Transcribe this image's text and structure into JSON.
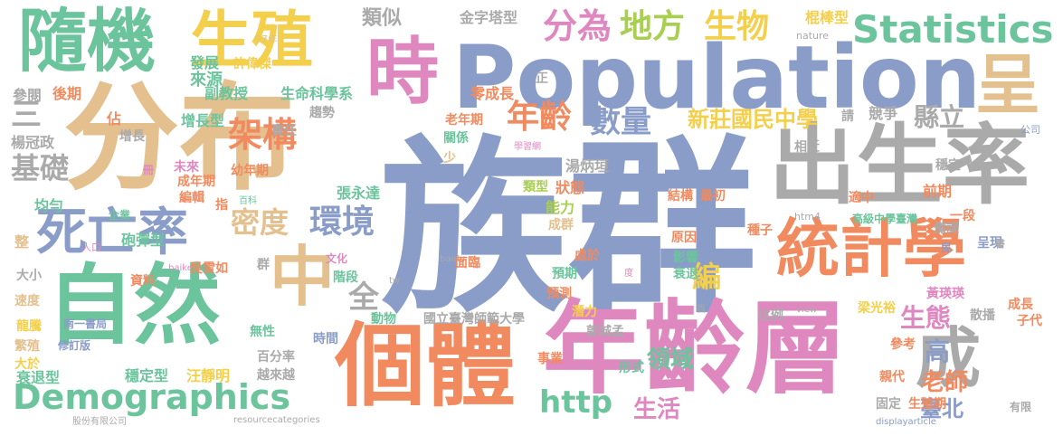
{
  "colors": {
    "blue": "#8a9cc8",
    "tan": "#e3c08e",
    "green": "#6cc49d",
    "orange": "#f18a5f",
    "pink": "#df88c0",
    "gray": "#aaaaaa",
    "yellow": "#f4cf4b",
    "lime": "#a8cf50"
  },
  "words": [
    {
      "text": "族群",
      "color": "blue"
    },
    {
      "text": "Population",
      "color": "blue"
    },
    {
      "text": "分布",
      "color": "tan"
    },
    {
      "text": "年齡層",
      "color": "pink"
    },
    {
      "text": "個體",
      "color": "orange"
    },
    {
      "text": "出生率",
      "color": "gray"
    },
    {
      "text": "自然",
      "color": "green"
    },
    {
      "text": "隨機",
      "color": "green"
    },
    {
      "text": "生殖",
      "color": "yellow"
    },
    {
      "text": "統計學",
      "color": "orange"
    },
    {
      "text": "中",
      "color": "tan"
    },
    {
      "text": "死亡率",
      "color": "blue"
    },
    {
      "text": "時",
      "color": "pink"
    },
    {
      "text": "成",
      "color": "gray"
    },
    {
      "text": "呈",
      "color": "tan"
    },
    {
      "text": "Demographics",
      "color": "green"
    },
    {
      "text": "Statistics",
      "color": "green"
    },
    {
      "text": "架構",
      "color": "orange"
    },
    {
      "text": "分為",
      "color": "pink"
    },
    {
      "text": "地方",
      "color": "lime"
    },
    {
      "text": "生物",
      "color": "yellow"
    },
    {
      "text": "年齡",
      "color": "orange"
    },
    {
      "text": "數量",
      "color": "blue"
    },
    {
      "text": "環境",
      "color": "blue"
    },
    {
      "text": "密度",
      "color": "tan"
    },
    {
      "text": "基礎",
      "color": "gray"
    },
    {
      "text": "三",
      "color": "gray"
    },
    {
      "text": "新莊國民中學",
      "color": "yellow"
    },
    {
      "text": "縣立",
      "color": "gray"
    },
    {
      "text": "http",
      "color": "green"
    },
    {
      "text": "生態",
      "color": "pink"
    },
    {
      "text": "編",
      "color": "yellow"
    },
    {
      "text": "高",
      "color": "blue"
    },
    {
      "text": "老師",
      "color": "orange"
    },
    {
      "text": "臺北",
      "color": "blue"
    },
    {
      "text": "全",
      "color": "gray"
    },
    {
      "text": "領域",
      "color": "green"
    },
    {
      "text": "生活",
      "color": "pink"
    },
    {
      "text": "類似",
      "color": "gray"
    },
    {
      "text": "金字塔型",
      "color": "gray"
    },
    {
      "text": "棍棒型",
      "color": "yellow"
    },
    {
      "text": "nature",
      "color": "gray"
    },
    {
      "text": "97年",
      "color": "tan"
    },
    {
      "text": "發展",
      "color": "green"
    },
    {
      "text": "許偉傑",
      "color": "yellow"
    },
    {
      "text": "參閱",
      "color": "gray"
    },
    {
      "text": "後期",
      "color": "orange"
    },
    {
      "text": "來源",
      "color": "green"
    },
    {
      "text": "副教授",
      "color": "green"
    },
    {
      "text": "生命科學系",
      "color": "green"
    },
    {
      "text": "零成長",
      "color": "orange"
    },
    {
      "text": "正",
      "color": "gray"
    },
    {
      "text": "請",
      "color": "gray"
    },
    {
      "text": "競爭",
      "color": "gray"
    },
    {
      "text": "佔",
      "color": "orange"
    },
    {
      "text": "增長型",
      "color": "green"
    },
    {
      "text": "趨勢",
      "color": "gray"
    },
    {
      "text": "老年期",
      "color": "orange"
    },
    {
      "text": "關係",
      "color": "green"
    },
    {
      "text": "學習網",
      "color": "pink"
    },
    {
      "text": "公司",
      "color": "blue"
    },
    {
      "text": "楊冠政",
      "color": "gray"
    },
    {
      "text": "增長",
      "color": "gray"
    },
    {
      "text": "責任",
      "color": "gray"
    },
    {
      "text": "少",
      "color": "tan"
    },
    {
      "text": "湯炳垣",
      "color": "gray"
    },
    {
      "text": "相近",
      "color": "gray"
    },
    {
      "text": "冊",
      "color": "pink"
    },
    {
      "text": "未來",
      "color": "pink"
    },
    {
      "text": "成年期",
      "color": "orange"
    },
    {
      "text": "幼年期",
      "color": "orange"
    },
    {
      "text": "狀態",
      "color": "orange"
    },
    {
      "text": "穩定",
      "color": "gray"
    },
    {
      "text": "均勻",
      "color": "green"
    },
    {
      "text": "編輯",
      "color": "orange"
    },
    {
      "text": "百科",
      "color": "green"
    },
    {
      "text": "張永達",
      "color": "green"
    },
    {
      "text": "類型",
      "color": "lime"
    },
    {
      "text": "結構",
      "color": "orange"
    },
    {
      "text": "最初",
      "color": "orange"
    },
    {
      "text": "前期",
      "color": "orange"
    },
    {
      "text": "適中",
      "color": "orange"
    },
    {
      "text": "企業",
      "color": "green"
    },
    {
      "text": "指",
      "color": "orange"
    },
    {
      "text": "能力",
      "color": "lime"
    },
    {
      "text": "htm4",
      "color": "gray"
    },
    {
      "text": "高級中學臺灣",
      "color": "green"
    },
    {
      "text": "一段",
      "color": "orange"
    },
    {
      "text": "備課",
      "color": "gray"
    },
    {
      "text": "整",
      "color": "tan"
    },
    {
      "text": "人口",
      "color": "pink"
    },
    {
      "text": "砲彈型",
      "color": "green"
    },
    {
      "text": "成群",
      "color": "tan"
    },
    {
      "text": "處於",
      "color": "orange"
    },
    {
      "text": "原因",
      "color": "orange"
    },
    {
      "text": "種子",
      "color": "orange"
    },
    {
      "text": "呈現",
      "color": "blue"
    },
    {
      "text": "民",
      "color": "blue"
    },
    {
      "text": "書",
      "color": "gray"
    },
    {
      "text": "大小",
      "color": "gray"
    },
    {
      "text": "群",
      "color": "gray"
    },
    {
      "text": "文化",
      "color": "pink"
    },
    {
      "text": "baike",
      "color": "pink"
    },
    {
      "text": "吳雪如",
      "color": "orange"
    },
    {
      "text": "baidu",
      "color": "gray"
    },
    {
      "text": "面臨",
      "color": "orange"
    },
    {
      "text": "預期",
      "color": "green"
    },
    {
      "text": "度",
      "color": "pink"
    },
    {
      "text": "影響",
      "color": "green"
    },
    {
      "text": "衰退",
      "color": "green"
    },
    {
      "text": "速度",
      "color": "tan"
    },
    {
      "text": "資料",
      "color": "orange"
    },
    {
      "text": "階段",
      "color": "green"
    },
    {
      "text": "預測",
      "color": "orange"
    },
    {
      "text": "tw",
      "color": "gray"
    },
    {
      "text": "黃瑛瑛",
      "color": "pink"
    },
    {
      "text": "龍騰",
      "color": "yellow"
    },
    {
      "text": "南一書局",
      "color": "blue"
    },
    {
      "text": "國立臺灣師範大學",
      "color": "gray"
    },
    {
      "text": "潛力",
      "color": "yellow"
    },
    {
      "text": "百",
      "color": "gray"
    },
    {
      "text": "比例",
      "color": "gray"
    },
    {
      "text": "梁光裕",
      "color": "yellow"
    },
    {
      "text": "view",
      "color": "gray"
    },
    {
      "text": "成長",
      "color": "orange"
    },
    {
      "text": "散播",
      "color": "gray"
    },
    {
      "text": "子代",
      "color": "orange"
    },
    {
      "text": "繁殖",
      "color": "tan"
    },
    {
      "text": "修訂版",
      "color": "blue"
    },
    {
      "text": "無性",
      "color": "green"
    },
    {
      "text": "動物",
      "color": "green"
    },
    {
      "text": "時間",
      "color": "blue"
    },
    {
      "text": "郭城孟",
      "color": "gray"
    },
    {
      "text": "參考",
      "color": "orange"
    },
    {
      "text": "大於",
      "color": "yellow"
    },
    {
      "text": "事業",
      "color": "orange"
    },
    {
      "text": "形式",
      "color": "green"
    },
    {
      "text": "親代",
      "color": "orange"
    },
    {
      "text": "衰退型",
      "color": "green"
    },
    {
      "text": "穩定型",
      "color": "green"
    },
    {
      "text": "汪靜明",
      "color": "yellow"
    },
    {
      "text": "百分率",
      "color": "gray"
    },
    {
      "text": "越來越",
      "color": "gray"
    },
    {
      "text": "固定",
      "color": "gray"
    },
    {
      "text": "生殖期",
      "color": "orange"
    },
    {
      "text": "有限",
      "color": "gray"
    },
    {
      "text": "股份有限公司",
      "color": "gray"
    },
    {
      "text": "resourcecategories",
      "color": "gray"
    },
    {
      "text": "displayarticle",
      "color": "blue"
    }
  ]
}
